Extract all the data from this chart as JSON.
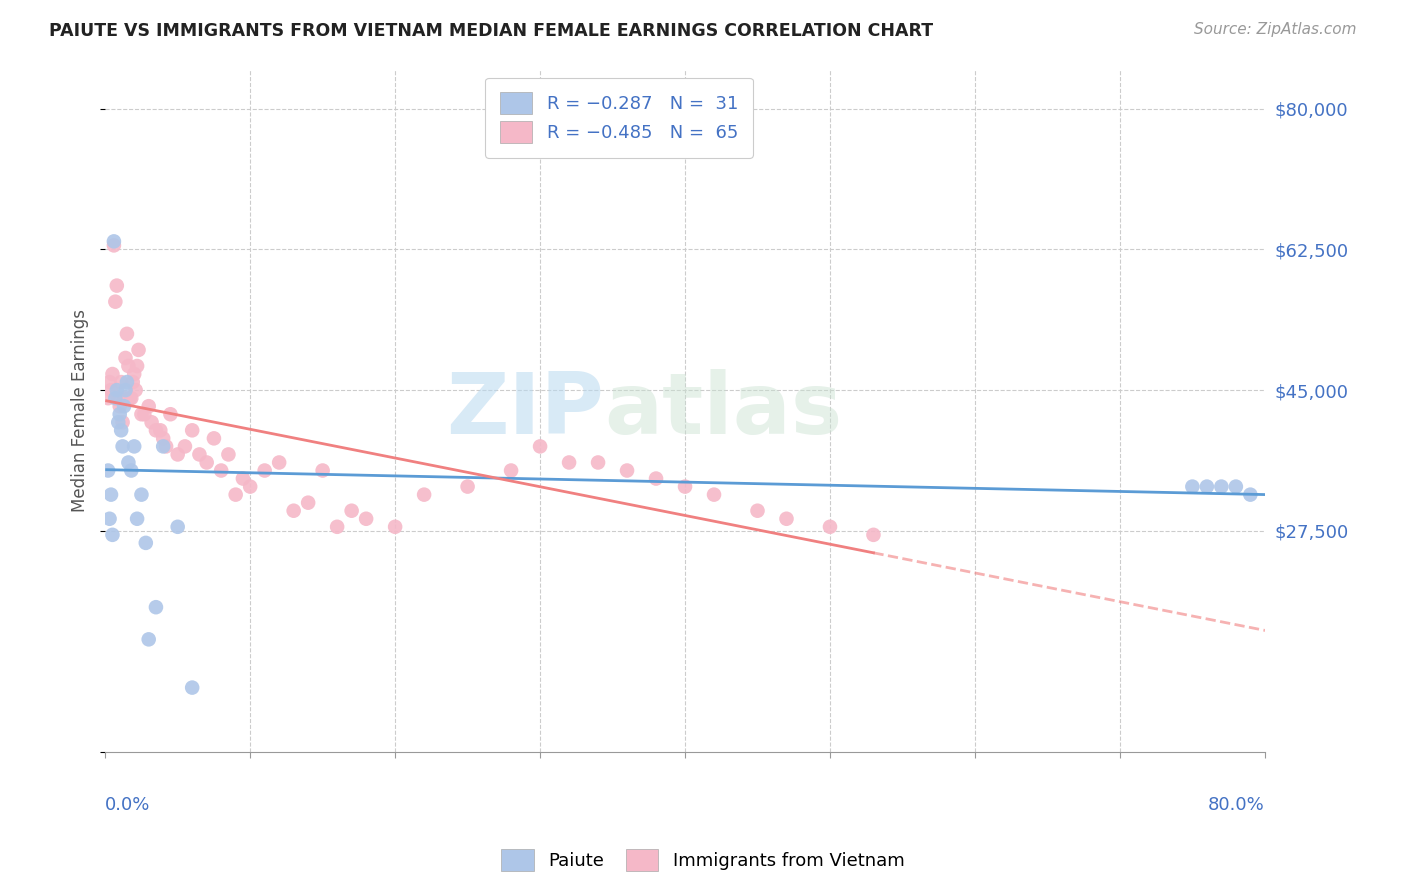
{
  "title": "PAIUTE VS IMMIGRANTS FROM VIETNAM MEDIAN FEMALE EARNINGS CORRELATION CHART",
  "source": "Source: ZipAtlas.com",
  "ylabel": "Median Female Earnings",
  "yticks": [
    0,
    27500,
    45000,
    62500,
    80000
  ],
  "ytick_labels": [
    "",
    "$27,500",
    "$45,000",
    "$62,500",
    "$80,000"
  ],
  "xlim": [
    0.0,
    0.8
  ],
  "ylim": [
    0,
    85000
  ],
  "color_paiute": "#aec6e8",
  "color_vietnam": "#f5b8c8",
  "color_blue_line": "#5b9bd5",
  "color_pink_line": "#f08080",
  "color_ytick": "#4472c4",
  "watermark_zip": "ZIP",
  "watermark_atlas": "atlas",
  "paiute_x": [
    0.002,
    0.003,
    0.004,
    0.005,
    0.006,
    0.007,
    0.008,
    0.009,
    0.01,
    0.011,
    0.012,
    0.013,
    0.014,
    0.015,
    0.016,
    0.018,
    0.02,
    0.022,
    0.025,
    0.028,
    0.03,
    0.035,
    0.04,
    0.05,
    0.06,
    0.75,
    0.76,
    0.77,
    0.78,
    0.79
  ],
  "paiute_y": [
    35000,
    29000,
    32000,
    27000,
    63500,
    44000,
    45000,
    41000,
    42000,
    40000,
    38000,
    43000,
    45000,
    46000,
    36000,
    35000,
    38000,
    29000,
    32000,
    26000,
    14000,
    18000,
    38000,
    28000,
    8000,
    33000,
    33000,
    33000,
    33000,
    32000
  ],
  "vietnam_x": [
    0.002,
    0.003,
    0.004,
    0.005,
    0.006,
    0.007,
    0.008,
    0.009,
    0.01,
    0.011,
    0.012,
    0.013,
    0.014,
    0.015,
    0.016,
    0.017,
    0.018,
    0.019,
    0.02,
    0.021,
    0.022,
    0.023,
    0.025,
    0.027,
    0.03,
    0.032,
    0.035,
    0.038,
    0.04,
    0.042,
    0.045,
    0.05,
    0.055,
    0.06,
    0.065,
    0.07,
    0.075,
    0.08,
    0.085,
    0.09,
    0.095,
    0.1,
    0.11,
    0.12,
    0.13,
    0.14,
    0.15,
    0.16,
    0.17,
    0.18,
    0.2,
    0.22,
    0.25,
    0.28,
    0.3,
    0.32,
    0.34,
    0.36,
    0.38,
    0.4,
    0.42,
    0.45,
    0.47,
    0.5,
    0.53
  ],
  "vietnam_y": [
    44000,
    46000,
    45000,
    47000,
    63000,
    56000,
    58000,
    44000,
    43000,
    46000,
    41000,
    44000,
    49000,
    52000,
    48000,
    44000,
    44000,
    46000,
    47000,
    45000,
    48000,
    50000,
    42000,
    42000,
    43000,
    41000,
    40000,
    40000,
    39000,
    38000,
    42000,
    37000,
    38000,
    40000,
    37000,
    36000,
    39000,
    35000,
    37000,
    32000,
    34000,
    33000,
    35000,
    36000,
    30000,
    31000,
    35000,
    28000,
    30000,
    29000,
    28000,
    32000,
    33000,
    35000,
    38000,
    36000,
    36000,
    35000,
    34000,
    33000,
    32000,
    30000,
    29000,
    28000,
    27000
  ]
}
